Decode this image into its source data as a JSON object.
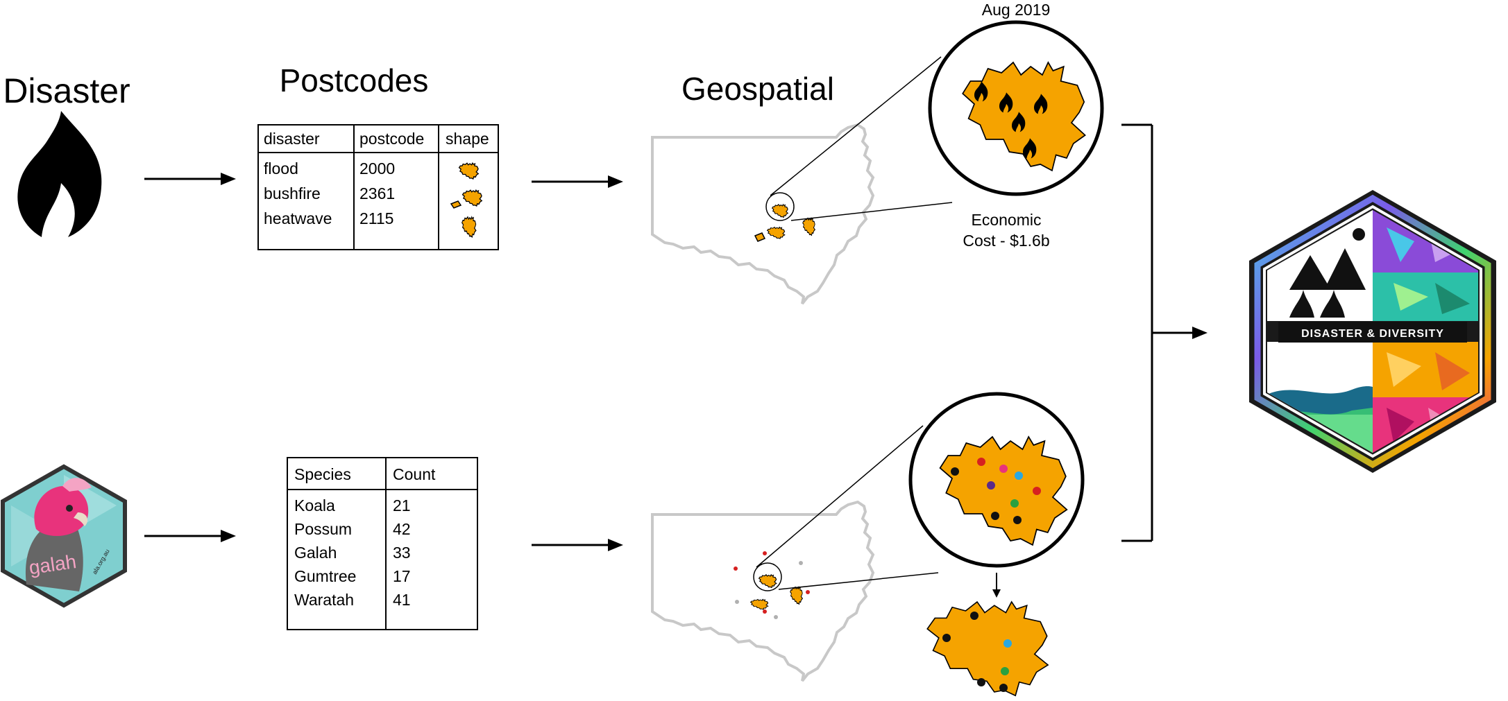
{
  "colors": {
    "shape_fill": "#f5a300",
    "outline_gray": "#c8c8c8",
    "ink": "#000000",
    "galah_pink": "#e8337c",
    "galah_teal": "#7fcfcf"
  },
  "top_flow": {
    "disaster_heading": "Disaster",
    "disaster_icon": "flame-icon",
    "postcodes_heading": "Postcodes",
    "postcode_table": {
      "headers": [
        "disaster",
        "postcode",
        "shape"
      ],
      "rows": [
        {
          "disaster": "flood",
          "postcode": "2000"
        },
        {
          "disaster": "bushfire",
          "postcode": "2361"
        },
        {
          "disaster": "heatwave",
          "postcode": "2115"
        }
      ]
    },
    "geospatial_heading": "Geospatial",
    "zoom_date": "Aug 2019",
    "cost_line1": "Economic",
    "cost_line2": "Cost - $1.6b"
  },
  "bottom_flow": {
    "galah_label": "galah",
    "galah_url": "ala.org.au",
    "species_table": {
      "headers": [
        "Species",
        "Count"
      ],
      "rows": [
        {
          "species": "Koala",
          "count": "21"
        },
        {
          "species": "Possum",
          "count": "42"
        },
        {
          "species": "Galah",
          "count": "33"
        },
        {
          "species": "Gumtree",
          "count": "17"
        },
        {
          "species": "Waratah",
          "count": "41"
        }
      ]
    }
  },
  "result_badge": {
    "label": "DISASTER & DIVERSITY"
  }
}
